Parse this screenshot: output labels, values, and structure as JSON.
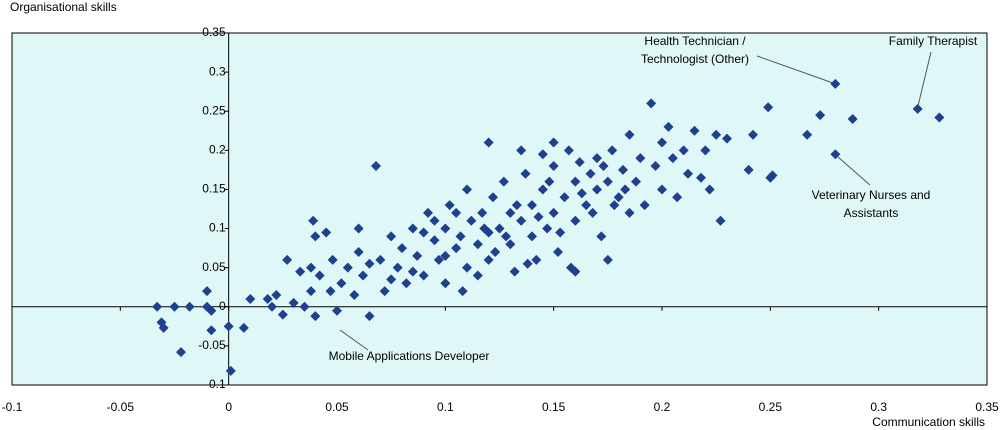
{
  "chart_data": {
    "type": "scatter",
    "y_label": "Organisational skills",
    "x_label": "Communication skills",
    "color": "#1f3f8f",
    "background": "#e0f7f7",
    "xlim": [
      -0.1,
      0.35
    ],
    "xticks": [
      -0.1,
      -0.05,
      0,
      0.05,
      0.1,
      0.15,
      0.2,
      0.25,
      0.3,
      0.35
    ],
    "ylim": [
      -0.1,
      0.35
    ],
    "yticks": [
      -0.1,
      -0.05,
      0,
      0.05,
      0.1,
      0.15,
      0.2,
      0.25,
      0.3,
      0.35
    ],
    "x": [
      -0.033,
      -0.031,
      -0.03,
      -0.025,
      -0.022,
      -0.018,
      -0.01,
      -0.01,
      -0.008,
      -0.008,
      0,
      0.001,
      0.007,
      0.01,
      0.018,
      0.02,
      0.022,
      0.025,
      0.027,
      0.03,
      0.033,
      0.035,
      0.038,
      0.039,
      0.04,
      0.04,
      0.042,
      0.045,
      0.047,
      0.048,
      0.05,
      0.052,
      0.055,
      0.058,
      0.06,
      0.062,
      0.065,
      0.068,
      0.07,
      0.072,
      0.075,
      0.078,
      0.08,
      0.082,
      0.085,
      0.087,
      0.09,
      0.092,
      0.095,
      0.097,
      0.1,
      0.1,
      0.102,
      0.105,
      0.107,
      0.11,
      0.11,
      0.112,
      0.115,
      0.117,
      0.12,
      0.12,
      0.122,
      0.125,
      0.127,
      0.13,
      0.13,
      0.132,
      0.135,
      0.137,
      0.14,
      0.14,
      0.142,
      0.145,
      0.147,
      0.15,
      0.15,
      0.152,
      0.155,
      0.157,
      0.16,
      0.16,
      0.162,
      0.165,
      0.167,
      0.17,
      0.17,
      0.172,
      0.175,
      0.177,
      0.18,
      0.182,
      0.185,
      0.185,
      0.188,
      0.19,
      0.192,
      0.195,
      0.197,
      0.2,
      0.2,
      0.203,
      0.205,
      0.207,
      0.21,
      0.212,
      0.215,
      0.218,
      0.22,
      0.222,
      0.225,
      0.227,
      0.23,
      0.24,
      0.242,
      0.249,
      0.25,
      0.251,
      0.267,
      0.273,
      0.28,
      0.28,
      0.288,
      0.318,
      0.328,
      0.06,
      0.065,
      0.075,
      0.085,
      0.09,
      0.095,
      0.1,
      0.105,
      0.108,
      0.115,
      0.118,
      0.123,
      0.128,
      0.133,
      0.138,
      0.143,
      0.148,
      0.153,
      0.158,
      0.163,
      0.168,
      0.173,
      0.178,
      0.183,
      0.038,
      0.12,
      0.145,
      0.16,
      0.175,
      0.135,
      0.15
    ],
    "values": [
      0,
      -0.02,
      -0.027,
      0,
      -0.058,
      0,
      0.02,
      0,
      -0.005,
      -0.03,
      -0.025,
      -0.082,
      -0.027,
      0.01,
      0.01,
      0,
      0.015,
      -0.01,
      0.06,
      0.005,
      0.045,
      0,
      0.02,
      0.11,
      -0.012,
      0.09,
      0.04,
      0.095,
      0.02,
      0.06,
      -0.005,
      0.03,
      0.05,
      0.015,
      0.07,
      0.04,
      -0.012,
      0.18,
      0.06,
      0.02,
      0.09,
      0.05,
      0.075,
      0.03,
      0.1,
      0.065,
      0.04,
      0.12,
      0.085,
      0.06,
      0.1,
      0.03,
      0.13,
      0.075,
      0.09,
      0.05,
      0.15,
      0.11,
      0.08,
      0.12,
      0.095,
      0.06,
      0.14,
      0.1,
      0.16,
      0.08,
      0.12,
      0.045,
      0.11,
      0.17,
      0.09,
      0.13,
      0.06,
      0.15,
      0.1,
      0.18,
      0.12,
      0.07,
      0.14,
      0.2,
      0.16,
      0.11,
      0.185,
      0.13,
      0.17,
      0.15,
      0.19,
      0.09,
      0.16,
      0.2,
      0.14,
      0.175,
      0.12,
      0.22,
      0.16,
      0.19,
      0.13,
      0.26,
      0.18,
      0.15,
      0.21,
      0.23,
      0.19,
      0.14,
      0.2,
      0.17,
      0.225,
      0.165,
      0.2,
      0.15,
      0.22,
      0.11,
      0.215,
      0.175,
      0.22,
      0.255,
      0.165,
      0.168,
      0.22,
      0.245,
      0.285,
      0.195,
      0.24,
      0.253,
      0.242,
      0.1,
      0.055,
      0.035,
      0.045,
      0.095,
      0.11,
      0.065,
      0.12,
      0.02,
      0.04,
      0.1,
      0.07,
      0.09,
      0.13,
      0.055,
      0.115,
      0.16,
      0.095,
      0.05,
      0.145,
      0.12,
      0.18,
      0.13,
      0.15,
      0.05,
      0.21,
      0.195,
      0.045,
      0.06,
      0.2,
      0.21
    ],
    "annotations": [
      {
        "lines": [
          "Health Technician /",
          "Technologist (Other)"
        ]
      },
      {
        "lines": [
          "Family Therapist"
        ]
      },
      {
        "lines": [
          "Veterinary Nurses and",
          "Assistants"
        ]
      },
      {
        "lines": [
          "Mobile Applications Developer"
        ]
      }
    ]
  }
}
